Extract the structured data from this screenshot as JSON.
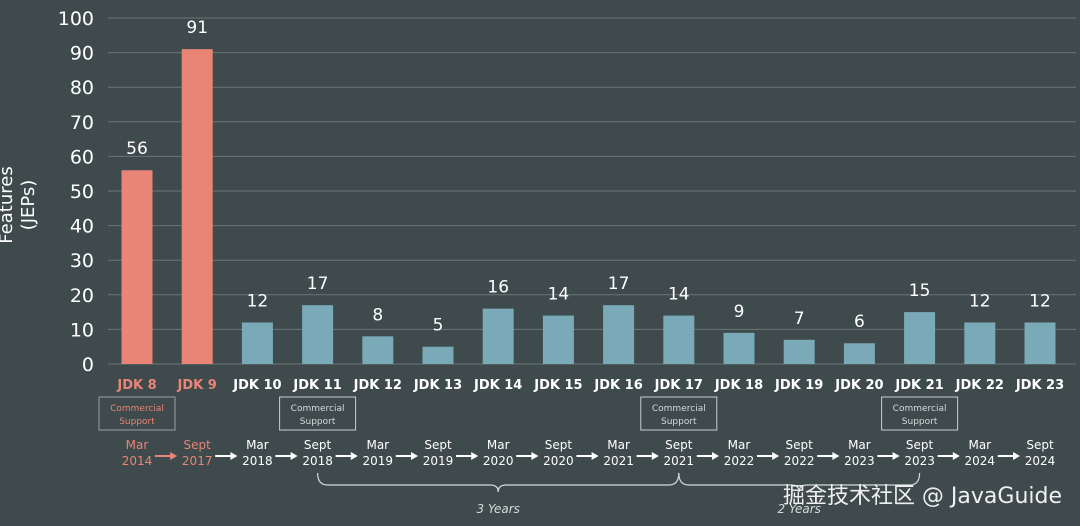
{
  "chart_data": {
    "type": "bar",
    "ylabel_line1": "Features",
    "ylabel_line2": "(JEPs)",
    "ylim": [
      0,
      100
    ],
    "yticks": [
      "0",
      "10",
      "20",
      "30",
      "40",
      "50",
      "60",
      "70",
      "80",
      "90",
      "100"
    ],
    "grid": true,
    "categories": [
      "JDK 8",
      "JDK 9",
      "JDK 10",
      "JDK 11",
      "JDK 12",
      "JDK 13",
      "JDK 14",
      "JDK 15",
      "JDK 16",
      "JDK 17",
      "JDK 18",
      "JDK 19",
      "JDK 20",
      "JDK 21",
      "JDK 22",
      "JDK 23"
    ],
    "values": [
      56,
      91,
      12,
      17,
      8,
      5,
      16,
      14,
      17,
      14,
      9,
      7,
      6,
      15,
      12,
      12
    ],
    "release_month": [
      "Mar",
      "Sept",
      "Mar",
      "Sept",
      "Mar",
      "Sept",
      "Mar",
      "Sept",
      "Mar",
      "Sept",
      "Mar",
      "Sept",
      "Mar",
      "Sept",
      "Mar",
      "Sept"
    ],
    "release_year": [
      "2014",
      "2017",
      "2018",
      "2018",
      "2019",
      "2019",
      "2020",
      "2020",
      "2021",
      "2021",
      "2022",
      "2022",
      "2023",
      "2023",
      "2024",
      "2024"
    ],
    "commercial_support_label_line1": "Commercial",
    "commercial_support_label_line2": "Support",
    "commercial_support_versions": [
      "JDK 8",
      "JDK 11",
      "JDK 17",
      "JDK 21"
    ],
    "brace_labels": [
      "3 Years",
      "2 Years"
    ],
    "colors": {
      "background": "#3e4a4c",
      "grid": "#6b7577",
      "legacy_bar": "#e88577",
      "modern_bar": "#7aa9b7",
      "legacy_label": "#e88577",
      "text": "#ffffff",
      "muted_text": "#d6d9da"
    }
  },
  "watermark": "掘金技术社区 @ JavaGuide"
}
